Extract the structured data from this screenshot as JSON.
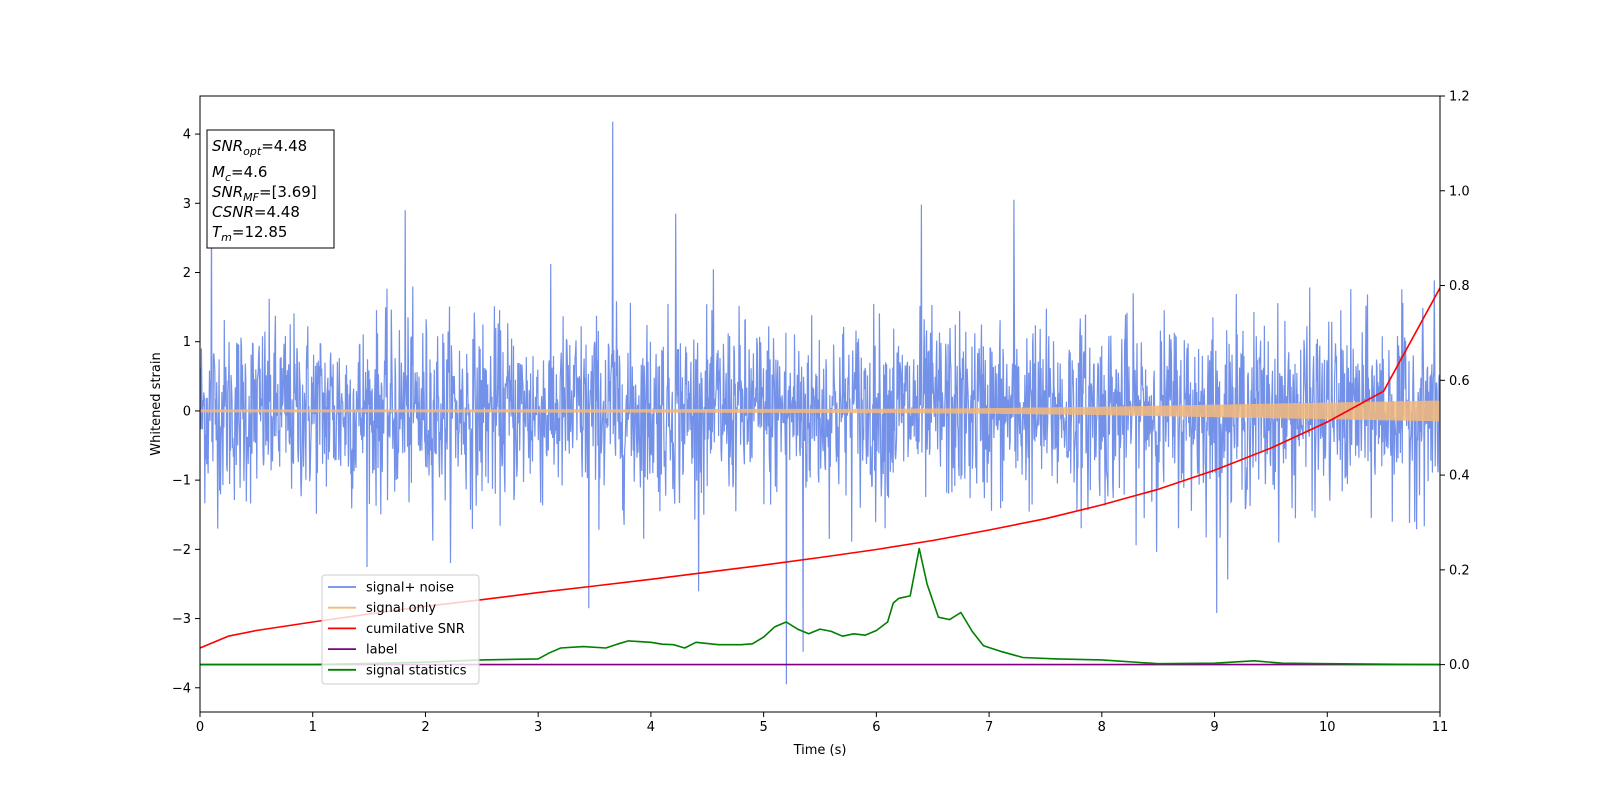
{
  "chart_data": {
    "type": "line",
    "title": "",
    "xlabel": "Time (s)",
    "ylabel": "Whitened strain",
    "ylabel_right": "",
    "xlim": [
      0,
      11
    ],
    "ylim": [
      -4.35,
      4.55
    ],
    "ylim_right": [
      -0.1,
      1.2
    ],
    "x_ticks": [
      0,
      1,
      2,
      3,
      4,
      5,
      6,
      7,
      8,
      9,
      10,
      11
    ],
    "y_ticks": [
      -4,
      -3,
      -2,
      -1,
      0,
      1,
      2,
      3,
      4
    ],
    "y_ticks_right": [
      0.0,
      0.2,
      0.4,
      0.6,
      0.8,
      1.0,
      1.2
    ],
    "y_tick_labels_right": [
      "0.0",
      "0.2",
      "0.4",
      "0.6",
      "0.8",
      "1.0",
      "1.2"
    ],
    "grid": false,
    "legend_position": "lower-left",
    "series": [
      {
        "name": "signal+ noise",
        "color": "#6b8be8",
        "axis": "left",
        "noise_sigma": 0.9,
        "notable_peaks": [
          [
            3.66,
            4.18
          ],
          [
            0.1,
            2.9
          ],
          [
            1.82,
            2.9
          ],
          [
            4.22,
            2.85
          ],
          [
            6.4,
            2.98
          ],
          [
            7.22,
            3.05
          ],
          [
            5.2,
            -3.95
          ],
          [
            5.35,
            -3.48
          ],
          [
            3.45,
            -2.85
          ],
          [
            9.02,
            -2.92
          ]
        ]
      },
      {
        "name": "signal only",
        "color": "#f5b97a",
        "axis": "left",
        "envelope": [
          [
            0,
            0.02
          ],
          [
            2,
            0.02
          ],
          [
            4,
            0.025
          ],
          [
            6,
            0.03
          ],
          [
            7,
            0.04
          ],
          [
            8,
            0.06
          ],
          [
            9,
            0.09
          ],
          [
            10,
            0.12
          ],
          [
            11,
            0.15
          ]
        ]
      },
      {
        "name": "cumilative SNR",
        "color": "#ff0000",
        "axis": "right",
        "x": [
          0,
          0.25,
          0.5,
          1,
          1.5,
          2,
          2.5,
          3,
          3.5,
          4,
          4.5,
          5,
          5.5,
          6,
          6.5,
          7,
          7.5,
          8,
          8.5,
          9,
          9.5,
          10,
          10.5,
          11
        ],
        "y": [
          0.035,
          0.06,
          0.072,
          0.09,
          0.107,
          0.123,
          0.137,
          0.152,
          0.166,
          0.18,
          0.195,
          0.21,
          0.226,
          0.243,
          0.262,
          0.284,
          0.308,
          0.337,
          0.37,
          0.41,
          0.457,
          0.512,
          0.577,
          0.795
        ]
      },
      {
        "name": "label",
        "color": "#800080",
        "axis": "right",
        "x": [
          0,
          11
        ],
        "y": [
          0.0,
          0.0
        ]
      },
      {
        "name": "signal statistics",
        "color": "#008000",
        "axis": "right",
        "x": [
          0,
          1,
          2,
          2.5,
          3.0,
          3.1,
          3.2,
          3.4,
          3.6,
          3.7,
          3.8,
          4.0,
          4.1,
          4.2,
          4.3,
          4.4,
          4.6,
          4.8,
          4.9,
          5.0,
          5.1,
          5.2,
          5.3,
          5.4,
          5.5,
          5.6,
          5.7,
          5.8,
          5.9,
          6.0,
          6.1,
          6.15,
          6.2,
          6.3,
          6.38,
          6.45,
          6.55,
          6.65,
          6.75,
          6.85,
          6.95,
          7.1,
          7.3,
          7.6,
          8.0,
          8.5,
          9.0,
          9.35,
          9.6,
          10,
          11
        ],
        "y": [
          0.0,
          0.0,
          0.005,
          0.01,
          0.012,
          0.025,
          0.035,
          0.038,
          0.035,
          0.043,
          0.05,
          0.047,
          0.043,
          0.042,
          0.035,
          0.047,
          0.042,
          0.042,
          0.044,
          0.058,
          0.08,
          0.09,
          0.075,
          0.065,
          0.075,
          0.07,
          0.06,
          0.065,
          0.062,
          0.072,
          0.09,
          0.13,
          0.14,
          0.145,
          0.245,
          0.17,
          0.1,
          0.095,
          0.11,
          0.07,
          0.04,
          0.028,
          0.015,
          0.012,
          0.01,
          0.002,
          0.003,
          0.008,
          0.003,
          0.002,
          0.0
        ]
      }
    ],
    "annotation_box": {
      "lines": [
        {
          "main": "SNR",
          "sub": "opt",
          "value": "=4.48"
        },
        {
          "main": "M",
          "sub": "c",
          "value": "=4.6"
        },
        {
          "main": "SNR",
          "sub": "MF",
          "value": "=[3.69]"
        },
        {
          "main": "CSNR",
          "sub": "",
          "value": "=4.48"
        },
        {
          "main": "T",
          "sub": "m",
          "value": "=12.85"
        }
      ]
    }
  }
}
